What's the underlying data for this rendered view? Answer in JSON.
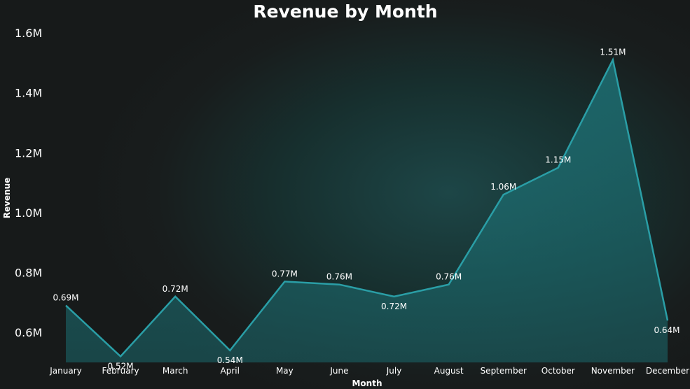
{
  "chart_data": {
    "type": "area",
    "title": "Revenue by Month",
    "xlabel": "Month",
    "ylabel": "Revenue",
    "categories": [
      "January",
      "February",
      "March",
      "April",
      "May",
      "June",
      "July",
      "August",
      "September",
      "October",
      "November",
      "December"
    ],
    "values": [
      0.69,
      0.52,
      0.72,
      0.54,
      0.77,
      0.76,
      0.72,
      0.76,
      1.06,
      1.15,
      1.51,
      0.64
    ],
    "data_labels": [
      "0.69M",
      "0.52M",
      "0.72M",
      "0.54M",
      "0.77M",
      "0.76M",
      "0.72M",
      "0.76M",
      "1.06M",
      "1.15M",
      "1.51M",
      "0.64M"
    ],
    "label_positions": [
      "above",
      "below",
      "above",
      "below",
      "above",
      "above",
      "below",
      "above",
      "above",
      "above",
      "above",
      "below"
    ],
    "y_ticks": [
      0.6,
      0.8,
      1.0,
      1.2,
      1.4,
      1.6
    ],
    "y_tick_labels": [
      "0.6M",
      "0.8M",
      "1.0M",
      "1.2M",
      "1.4M",
      "1.6M"
    ],
    "ylim": [
      0.5,
      1.6
    ],
    "grid": false,
    "legend": "none",
    "line_color": "#2a9ea6",
    "fill_color": "#1e7a80"
  }
}
